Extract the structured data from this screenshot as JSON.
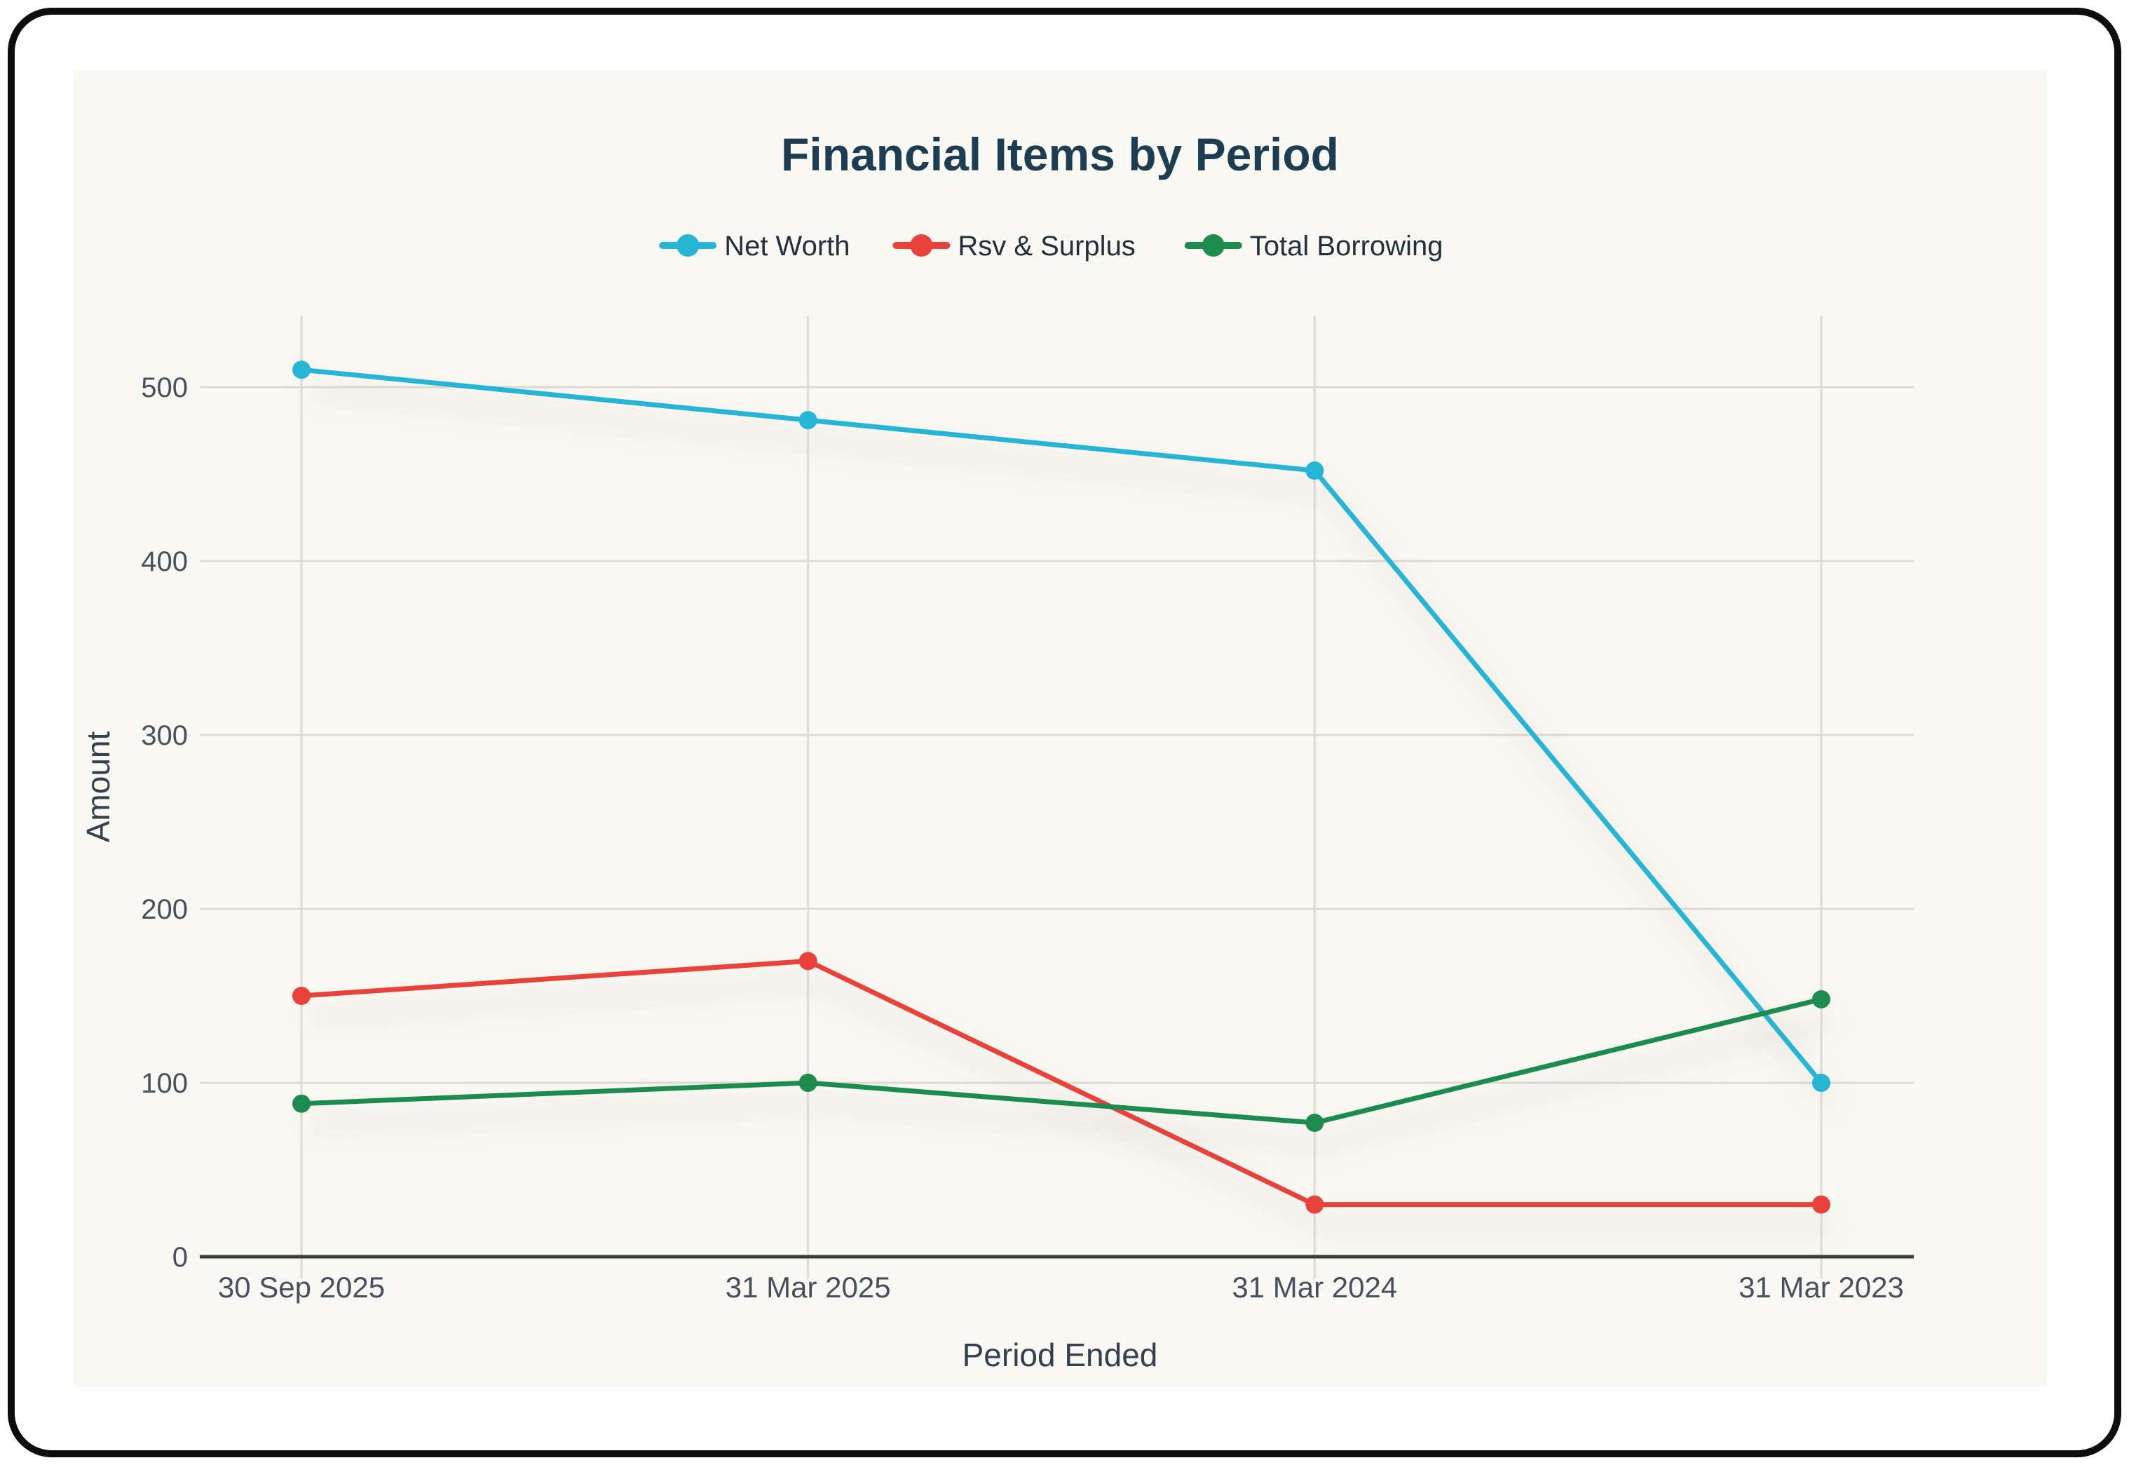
{
  "chart_data": {
    "type": "line",
    "title": "Financial Items by Period",
    "xlabel": "Period Ended",
    "ylabel": "Amount",
    "categories": [
      "30 Sep 2025",
      "31 Mar 2025",
      "31 Mar 2024",
      "31 Mar 2023"
    ],
    "series": [
      {
        "name": "Net Worth",
        "color": "#27b5d6",
        "values": [
          510,
          481,
          452,
          100
        ]
      },
      {
        "name": "Rsv & Surplus",
        "color": "#e8423b",
        "values": [
          150,
          170,
          30,
          30
        ]
      },
      {
        "name": "Total Borrowing",
        "color": "#1e8b4f",
        "values": [
          88,
          100,
          77,
          148
        ]
      }
    ],
    "yticks": [
      0,
      100,
      200,
      300,
      400,
      500
    ],
    "ylim": [
      0,
      540
    ],
    "grid": true,
    "legend_position": "top"
  },
  "colors": {
    "page_bg": "#ffffff",
    "border": "#0d0d0d",
    "card_bg": "#faf8f2",
    "title_text": "#1d3d53",
    "legend_text": "#22303d",
    "tick_text": "#47515d",
    "axis_title_text": "#33404e",
    "gridline": "#dedbd4",
    "axis_line": "#3c3c3c"
  }
}
